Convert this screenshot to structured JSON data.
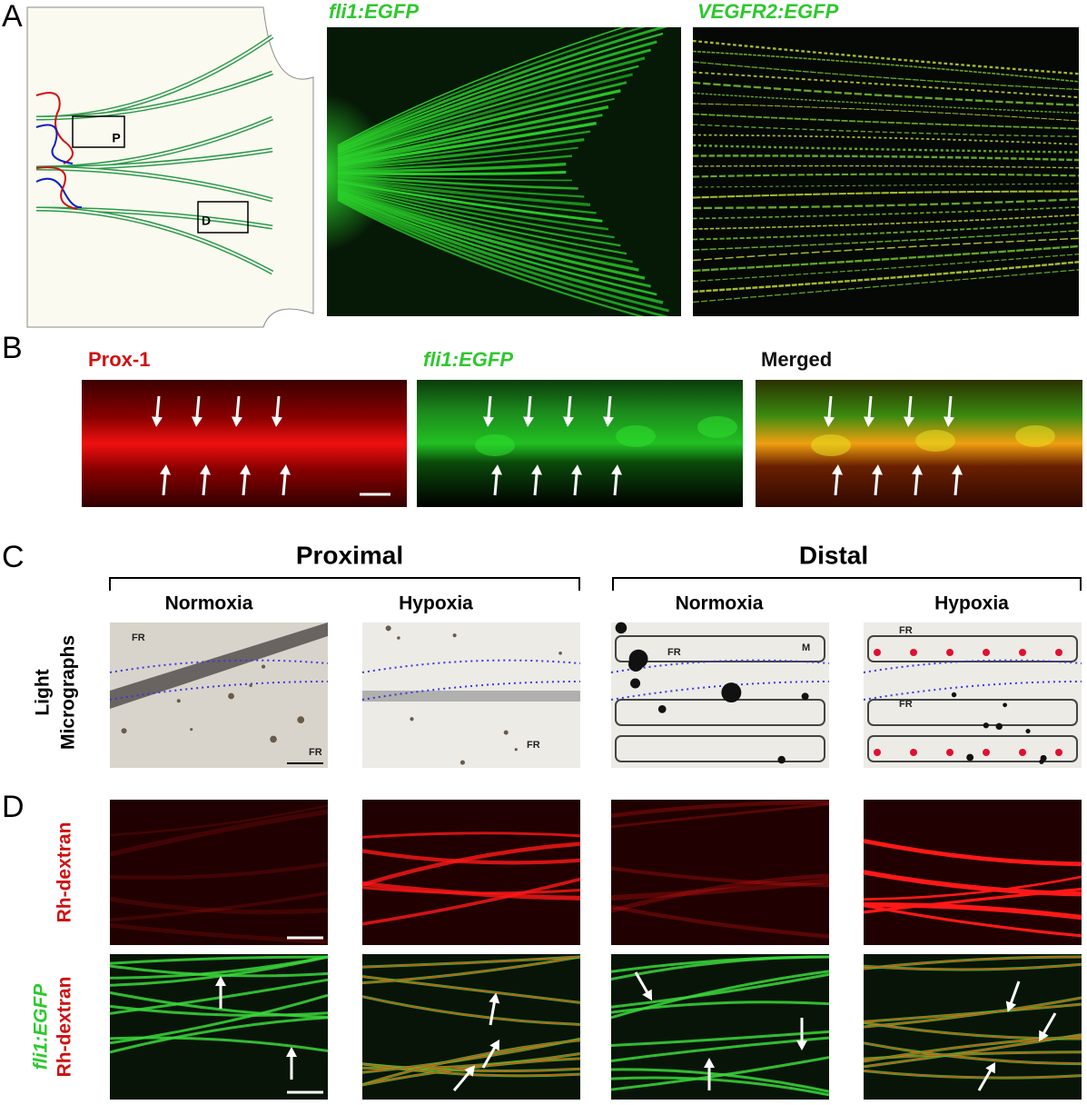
{
  "panel_a": {
    "letter": "A",
    "schematic_boxes": [
      "P",
      "D"
    ],
    "images": [
      "fli1:EGFP",
      "VEGFR2:EGFP"
    ]
  },
  "panel_b": {
    "letter": "B",
    "images": [
      "Prox-1",
      "fli1:EGFP",
      "Merged"
    ]
  },
  "panel_c": {
    "letter": "C",
    "groups": [
      "Proximal",
      "Distal"
    ],
    "conditions": [
      "Normoxia",
      "Hypoxia",
      "Normoxia",
      "Hypoxia"
    ],
    "row_label": [
      "Light",
      "Micrographs"
    ],
    "image_labels": [
      [
        "FR",
        "FR"
      ],
      [
        "FR"
      ],
      [
        "FR",
        "M"
      ],
      [
        "FR",
        "FR"
      ]
    ]
  },
  "panel_d": {
    "letter": "D",
    "row_labels": [
      [
        "Rh-dextran"
      ],
      [
        "fli1:EGFP",
        "Rh-dextran"
      ]
    ]
  }
}
